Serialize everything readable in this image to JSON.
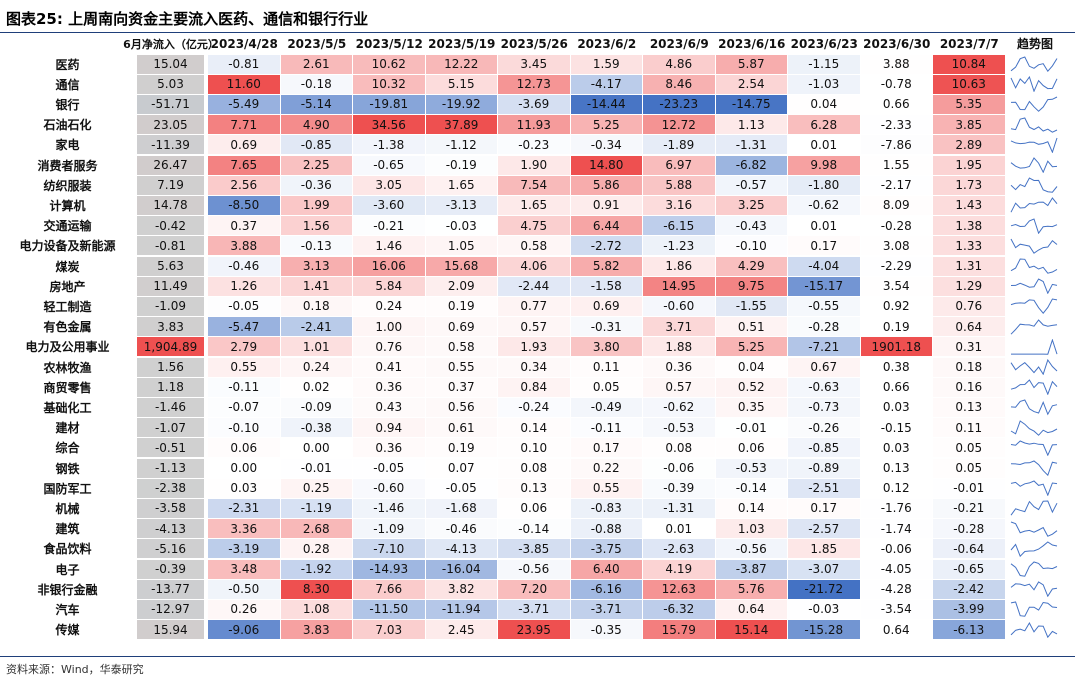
{
  "header": {
    "title": "图表25:  上周南向资金主要流入医药、通信和银行行业"
  },
  "table": {
    "columns": [
      "6月净流入（亿元）",
      "2023/4/28",
      "2023/5/5",
      "2023/5/12",
      "2023/5/19",
      "2023/5/26",
      "2023/6/2",
      "2023/6/9",
      "2023/6/16",
      "2023/6/23",
      "2023/6/30",
      "2023/7/7",
      "趋势图"
    ],
    "rows": [
      [
        "医药",
        "15.04",
        "-0.81",
        "2.61",
        "10.62",
        "12.22",
        "3.45",
        "1.59",
        "4.86",
        "5.87",
        "-1.15",
        "3.88",
        "10.84"
      ],
      [
        "通信",
        "5.03",
        "11.60",
        "-0.18",
        "10.32",
        "5.15",
        "12.73",
        "-4.17",
        "8.46",
        "2.54",
        "-1.03",
        "-0.78",
        "10.63"
      ],
      [
        "银行",
        "-51.71",
        "-5.49",
        "-5.14",
        "-19.81",
        "-19.92",
        "-3.69",
        "-14.44",
        "-23.23",
        "-14.75",
        "0.04",
        "0.66",
        "5.35"
      ],
      [
        "石油石化",
        "23.05",
        "7.71",
        "4.90",
        "34.56",
        "37.89",
        "11.93",
        "5.25",
        "12.72",
        "1.13",
        "6.28",
        "-2.33",
        "3.85"
      ],
      [
        "家电",
        "-11.39",
        "0.69",
        "-0.85",
        "-1.38",
        "-1.12",
        "-0.23",
        "-0.34",
        "-1.89",
        "-1.31",
        "0.01",
        "-7.86",
        "2.89"
      ],
      [
        "消费者服务",
        "26.47",
        "7.65",
        "2.25",
        "-0.65",
        "-0.19",
        "1.90",
        "14.80",
        "6.97",
        "-6.82",
        "9.98",
        "1.55",
        "1.95"
      ],
      [
        "纺织服装",
        "7.19",
        "2.56",
        "-0.36",
        "3.05",
        "1.65",
        "7.54",
        "5.86",
        "5.88",
        "-0.57",
        "-1.80",
        "-2.17",
        "1.73"
      ],
      [
        "计算机",
        "14.78",
        "-8.50",
        "1.99",
        "-3.60",
        "-3.13",
        "1.65",
        "0.91",
        "3.16",
        "3.25",
        "-0.62",
        "8.09",
        "1.43"
      ],
      [
        "交通运输",
        "-0.42",
        "0.37",
        "1.56",
        "-0.21",
        "-0.03",
        "4.75",
        "6.44",
        "-6.15",
        "-0.43",
        "0.01",
        "-0.28",
        "1.38"
      ],
      [
        "电力设备及新能源",
        "-0.81",
        "3.88",
        "-0.13",
        "1.46",
        "1.05",
        "0.58",
        "-2.72",
        "-1.23",
        "-0.10",
        "0.17",
        "3.08",
        "1.33"
      ],
      [
        "煤炭",
        "5.63",
        "-0.46",
        "3.13",
        "16.06",
        "15.68",
        "4.06",
        "5.82",
        "1.86",
        "4.29",
        "-4.04",
        "-2.29",
        "1.31"
      ],
      [
        "房地产",
        "11.49",
        "1.26",
        "1.41",
        "5.84",
        "2.09",
        "-2.44",
        "-1.58",
        "14.95",
        "9.75",
        "-15.17",
        "3.54",
        "1.29"
      ],
      [
        "轻工制造",
        "-1.09",
        "-0.05",
        "0.18",
        "0.24",
        "0.19",
        "0.77",
        "0.69",
        "-0.60",
        "-1.55",
        "-0.55",
        "0.92",
        "0.76"
      ],
      [
        "有色金属",
        "3.83",
        "-5.47",
        "-2.41",
        "1.00",
        "0.69",
        "0.57",
        "-0.31",
        "3.71",
        "0.51",
        "-0.28",
        "0.19",
        "0.64"
      ],
      [
        "电力及公用事业",
        "1,904.89",
        "2.79",
        "1.01",
        "0.76",
        "0.58",
        "1.93",
        "3.80",
        "1.88",
        "5.25",
        "-7.21",
        "1901.18",
        "0.31"
      ],
      [
        "农林牧渔",
        "1.56",
        "0.55",
        "0.24",
        "0.41",
        "0.55",
        "0.34",
        "0.11",
        "0.36",
        "0.04",
        "0.67",
        "0.38",
        "0.18"
      ],
      [
        "商贸零售",
        "1.18",
        "-0.11",
        "0.02",
        "0.36",
        "0.37",
        "0.84",
        "0.05",
        "0.57",
        "0.52",
        "-0.63",
        "0.66",
        "0.16"
      ],
      [
        "基础化工",
        "-1.46",
        "-0.07",
        "-0.09",
        "0.43",
        "0.56",
        "-0.24",
        "-0.49",
        "-0.62",
        "0.35",
        "-0.73",
        "0.03",
        "0.13"
      ],
      [
        "建材",
        "-1.07",
        "-0.10",
        "-0.38",
        "0.94",
        "0.61",
        "0.14",
        "-0.11",
        "-0.53",
        "-0.01",
        "-0.26",
        "-0.15",
        "0.11"
      ],
      [
        "综合",
        "-0.51",
        "0.06",
        "0.00",
        "0.36",
        "0.19",
        "0.10",
        "0.17",
        "0.08",
        "0.06",
        "-0.85",
        "0.03",
        "0.05"
      ],
      [
        "钢铁",
        "-1.13",
        "0.00",
        "-0.01",
        "-0.05",
        "0.07",
        "0.08",
        "0.22",
        "-0.06",
        "-0.53",
        "-0.89",
        "0.13",
        "0.05"
      ],
      [
        "国防军工",
        "-2.38",
        "0.03",
        "0.25",
        "-0.60",
        "-0.05",
        "0.13",
        "0.55",
        "-0.39",
        "-0.14",
        "-2.51",
        "0.12",
        "-0.01"
      ],
      [
        "机械",
        "-3.58",
        "-2.31",
        "-1.19",
        "-1.46",
        "-1.68",
        "0.06",
        "-0.83",
        "-1.31",
        "0.14",
        "0.17",
        "-1.76",
        "-0.21"
      ],
      [
        "建筑",
        "-4.13",
        "3.36",
        "2.68",
        "-1.09",
        "-0.46",
        "-0.14",
        "-0.88",
        "0.01",
        "1.03",
        "-2.57",
        "-1.74",
        "-0.28"
      ],
      [
        "食品饮料",
        "-5.16",
        "-3.19",
        "0.28",
        "-7.10",
        "-4.13",
        "-3.85",
        "-3.75",
        "-2.63",
        "-0.56",
        "1.85",
        "-0.06",
        "-0.64"
      ],
      [
        "电子",
        "-0.39",
        "3.48",
        "-1.92",
        "-14.93",
        "-16.04",
        "-0.56",
        "6.40",
        "4.19",
        "-3.87",
        "-3.07",
        "-4.05",
        "-0.65"
      ],
      [
        "非银行金融",
        "-13.77",
        "-0.50",
        "8.30",
        "7.66",
        "3.82",
        "7.20",
        "-6.16",
        "12.63",
        "5.76",
        "-21.72",
        "-4.28",
        "-2.42"
      ],
      [
        "汽车",
        "-12.97",
        "0.26",
        "1.08",
        "-11.50",
        "-11.94",
        "-3.71",
        "-3.71",
        "-6.32",
        "0.64",
        "-0.03",
        "-3.54",
        "-3.99"
      ],
      [
        "传媒",
        "15.94",
        "-9.06",
        "3.83",
        "7.03",
        "2.45",
        "23.95",
        "-0.35",
        "15.79",
        "15.14",
        "-15.28",
        "0.64",
        "-6.13"
      ]
    ]
  },
  "footer": {
    "source": "资料来源：Wind，华泰研究"
  }
}
